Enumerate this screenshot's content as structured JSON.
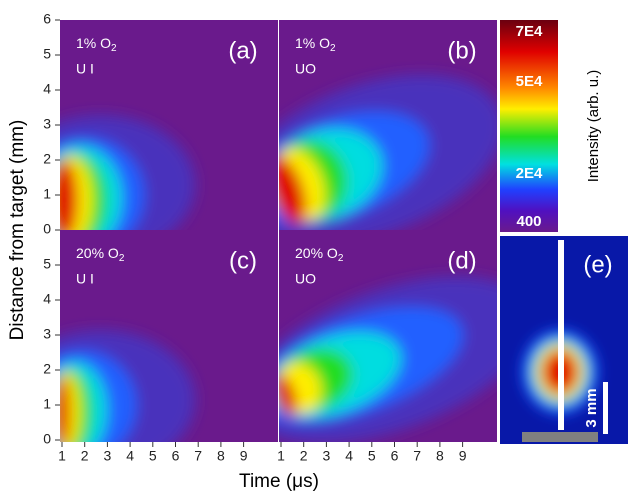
{
  "panels": [
    {
      "label": "(a)",
      "gas": "1% O",
      "gas_sub": "2",
      "mode": "U I"
    },
    {
      "label": "(b)",
      "gas": "1% O",
      "gas_sub": "2",
      "mode": "UO"
    },
    {
      "label": "(c)",
      "gas": "20% O",
      "gas_sub": "2",
      "mode": "U I"
    },
    {
      "label": "(d)",
      "gas": "20% O",
      "gas_sub": "2",
      "mode": "UO"
    }
  ],
  "panel_e": {
    "label": "(e)",
    "scale": "3 mm"
  },
  "y_axis": {
    "label": "Distance from target (mm)",
    "top_ticks": [
      0,
      1,
      2,
      3,
      4,
      5,
      6
    ],
    "bottom_ticks": [
      0,
      1,
      2,
      3,
      4,
      5
    ]
  },
  "x_axis": {
    "label": "Time (μs)",
    "ticks": [
      1,
      2,
      3,
      4,
      5,
      6,
      7,
      8,
      9
    ]
  },
  "colorbar": {
    "label": "Intensity (arb. u.)",
    "ticks": [
      "7E4",
      "5E4",
      "2E4",
      "400"
    ]
  }
}
